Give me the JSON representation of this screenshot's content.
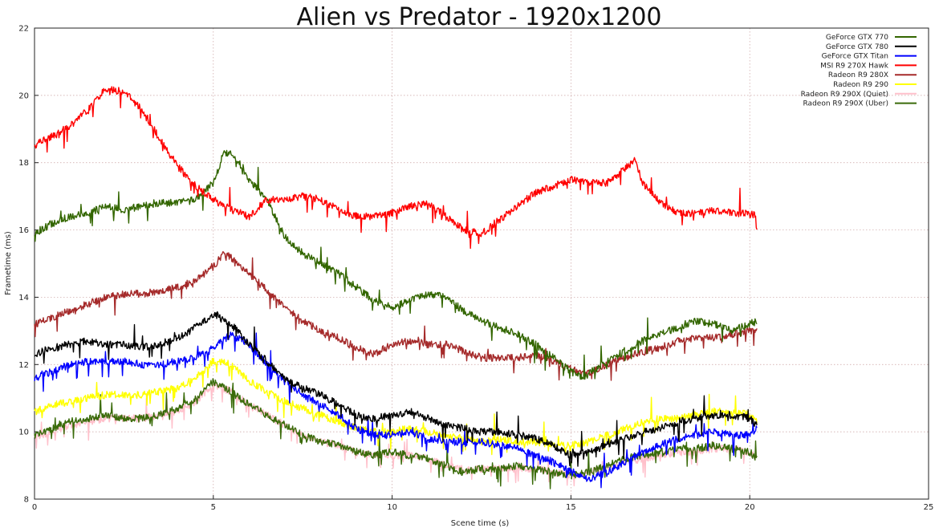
{
  "chart_data": {
    "type": "line",
    "title": "Alien vs Predator - 1920x1200",
    "xlabel": "Scene time (s)",
    "ylabel": "Frametime (ms)",
    "xlim": [
      0,
      25
    ],
    "ylim": [
      8,
      22
    ],
    "xticks": [
      0,
      5,
      10,
      15,
      20,
      25
    ],
    "yticks": [
      8,
      10,
      12,
      14,
      16,
      18,
      20,
      22
    ],
    "grid": true,
    "legend_position": "top-right",
    "series": [
      {
        "name": "GeForce GTX 770",
        "color": "#336600",
        "x": [
          0,
          0.5,
          1,
          1.5,
          2,
          2.5,
          3,
          3.5,
          4,
          4.5,
          5,
          5.3,
          5.6,
          6,
          6.5,
          7,
          7.5,
          8,
          8.5,
          9,
          9.5,
          10,
          10.5,
          11,
          11.5,
          12,
          12.5,
          13,
          13.5,
          14,
          14.5,
          15,
          15.3,
          15.6,
          16,
          16.5,
          17,
          17.5,
          18,
          18.5,
          19,
          19.5,
          20,
          20.2
        ],
        "y": [
          15.9,
          16.2,
          16.4,
          16.5,
          16.7,
          16.6,
          16.7,
          16.8,
          16.8,
          16.9,
          17.4,
          18.3,
          18.2,
          17.5,
          16.9,
          15.8,
          15.3,
          15.0,
          14.7,
          14.3,
          13.9,
          13.7,
          13.9,
          14.1,
          14.0,
          13.6,
          13.3,
          13.1,
          12.9,
          12.6,
          12.2,
          11.8,
          11.6,
          11.8,
          12.1,
          12.4,
          12.7,
          12.9,
          13.1,
          13.3,
          13.2,
          13.0,
          13.2,
          13.3
        ]
      },
      {
        "name": "GeForce GTX 780",
        "color": "#000000",
        "x": [
          0,
          0.5,
          1,
          1.5,
          2,
          2.5,
          3,
          3.5,
          4,
          4.5,
          5,
          5.5,
          6,
          6.5,
          7,
          7.5,
          8,
          8.5,
          9,
          9.5,
          10,
          10.5,
          11,
          11.5,
          12,
          12.5,
          13,
          13.5,
          14,
          14.5,
          15,
          15.5,
          16,
          16.5,
          17,
          17.5,
          18,
          18.5,
          19,
          19.5,
          20,
          20.2
        ],
        "y": [
          12.3,
          12.5,
          12.6,
          12.7,
          12.6,
          12.6,
          12.5,
          12.6,
          12.8,
          13.1,
          13.5,
          13.2,
          12.6,
          12.1,
          11.6,
          11.3,
          11.1,
          10.8,
          10.5,
          10.4,
          10.5,
          10.6,
          10.4,
          10.2,
          10.1,
          10.0,
          10.0,
          9.9,
          9.8,
          9.6,
          9.3,
          9.4,
          9.6,
          9.8,
          10.0,
          10.1,
          10.3,
          10.4,
          10.5,
          10.5,
          10.4,
          10.2
        ]
      },
      {
        "name": "GeForce GTX Titan",
        "color": "#0000ff",
        "x": [
          0,
          0.5,
          1,
          1.5,
          2,
          2.5,
          3,
          3.5,
          4,
          4.5,
          5,
          5.5,
          6,
          6.5,
          7,
          7.5,
          8,
          8.5,
          9,
          9.5,
          10,
          10.5,
          11,
          11.5,
          12,
          12.5,
          13,
          13.5,
          14,
          14.5,
          15,
          15.5,
          16,
          16.5,
          17,
          17.5,
          18,
          18.5,
          19,
          19.5,
          20,
          20.2
        ],
        "y": [
          11.6,
          11.8,
          12.0,
          12.1,
          12.1,
          12.1,
          12.0,
          12.0,
          12.1,
          12.2,
          12.5,
          12.9,
          12.6,
          12.0,
          11.5,
          11.1,
          10.8,
          10.5,
          10.1,
          9.9,
          9.9,
          10.0,
          9.8,
          9.7,
          9.7,
          9.7,
          9.6,
          9.5,
          9.3,
          9.1,
          8.8,
          8.6,
          8.8,
          9.1,
          9.4,
          9.6,
          9.8,
          9.9,
          10.0,
          9.9,
          9.9,
          10.1
        ]
      },
      {
        "name": "MSI R9 270X Hawk",
        "color": "#ff0000",
        "x": [
          0,
          0.5,
          1,
          1.5,
          2,
          2.5,
          3,
          3.5,
          4,
          4.5,
          5,
          5.5,
          6,
          6.5,
          7,
          7.5,
          8,
          8.5,
          9,
          9.5,
          10,
          10.5,
          11,
          11.5,
          12,
          12.5,
          13,
          13.5,
          14,
          14.5,
          15,
          15.5,
          16,
          16.5,
          16.8,
          17,
          17.5,
          18,
          18.5,
          19,
          19.5,
          20,
          20.2
        ],
        "y": [
          18.5,
          18.8,
          19.1,
          19.6,
          20.2,
          20.1,
          19.6,
          18.7,
          17.9,
          17.3,
          16.9,
          16.6,
          16.4,
          16.9,
          16.9,
          17.0,
          16.9,
          16.6,
          16.4,
          16.4,
          16.5,
          16.7,
          16.8,
          16.4,
          16.0,
          15.9,
          16.3,
          16.7,
          17.1,
          17.3,
          17.5,
          17.4,
          17.4,
          17.8,
          18.1,
          17.4,
          16.8,
          16.5,
          16.5,
          16.6,
          16.5,
          16.5,
          16.4
        ]
      },
      {
        "name": "Radeon R9 280X",
        "color": "#a52a2a",
        "x": [
          0,
          0.5,
          1,
          1.5,
          2,
          2.5,
          3,
          3.5,
          4,
          4.5,
          5,
          5.3,
          5.6,
          6,
          6.5,
          7,
          7.5,
          8,
          8.5,
          9,
          9.5,
          10,
          10.5,
          11,
          11.5,
          12,
          12.5,
          13,
          13.5,
          14,
          14.5,
          15,
          15.3,
          15.6,
          16,
          16.5,
          17,
          17.5,
          18,
          18.5,
          19,
          19.5,
          20,
          20.2
        ],
        "y": [
          13.2,
          13.4,
          13.6,
          13.8,
          14.0,
          14.1,
          14.1,
          14.2,
          14.3,
          14.5,
          14.9,
          15.3,
          15.1,
          14.7,
          14.2,
          13.7,
          13.3,
          13.0,
          12.8,
          12.5,
          12.3,
          12.6,
          12.7,
          12.6,
          12.6,
          12.4,
          12.2,
          12.2,
          12.2,
          12.3,
          12.1,
          11.9,
          11.7,
          11.8,
          12.0,
          12.2,
          12.4,
          12.5,
          12.7,
          12.8,
          12.8,
          12.9,
          13.0,
          13.0
        ]
      },
      {
        "name": "Radeon R9 290",
        "color": "#ffff00",
        "x": [
          0,
          0.5,
          1,
          1.5,
          2,
          2.5,
          3,
          3.5,
          4,
          4.5,
          5,
          5.5,
          6,
          6.5,
          7,
          7.5,
          8,
          8.5,
          9,
          9.5,
          10,
          10.5,
          11,
          11.5,
          12,
          12.5,
          13,
          13.5,
          14,
          14.5,
          15,
          15.5,
          16,
          16.5,
          17,
          17.5,
          18,
          18.5,
          19,
          19.5,
          20,
          20.2
        ],
        "y": [
          10.6,
          10.8,
          10.9,
          11.0,
          11.1,
          11.1,
          11.1,
          11.2,
          11.3,
          11.6,
          12.1,
          12.0,
          11.5,
          11.2,
          10.9,
          10.7,
          10.5,
          10.3,
          10.1,
          10.0,
          10.0,
          10.1,
          10.0,
          9.9,
          9.8,
          9.7,
          9.8,
          9.7,
          9.7,
          9.6,
          9.6,
          9.7,
          9.9,
          10.1,
          10.3,
          10.4,
          10.4,
          10.5,
          10.6,
          10.6,
          10.5,
          10.3
        ]
      },
      {
        "name": "Radeon R9 290X (Quiet)",
        "color": "#ffc0cb",
        "x": [
          0,
          0.5,
          1,
          1.5,
          2,
          2.5,
          3,
          3.5,
          4,
          4.5,
          5,
          5.5,
          6,
          6.5,
          7,
          7.5,
          8,
          8.5,
          9,
          9.5,
          10,
          10.5,
          11,
          11.5,
          12,
          12.5,
          13,
          13.5,
          14,
          14.5,
          15,
          15.5,
          16,
          16.5,
          17,
          17.5,
          18,
          18.5,
          19,
          19.5,
          20,
          20.2
        ],
        "y": [
          9.8,
          10.0,
          10.2,
          10.3,
          10.4,
          10.4,
          10.4,
          10.5,
          10.6,
          10.9,
          11.4,
          11.2,
          10.8,
          10.5,
          10.2,
          9.9,
          9.7,
          9.6,
          9.4,
          9.3,
          9.3,
          9.3,
          9.2,
          9.0,
          8.9,
          8.9,
          8.9,
          8.9,
          8.9,
          8.8,
          8.7,
          8.8,
          8.9,
          9.1,
          9.2,
          9.3,
          9.4,
          9.4,
          9.5,
          9.5,
          9.4,
          9.2
        ]
      },
      {
        "name": "Radeon R9 290X (Uber)",
        "color": "#3a6b0a",
        "x": [
          0,
          0.5,
          1,
          1.5,
          2,
          2.5,
          3,
          3.5,
          4,
          4.5,
          5,
          5.5,
          6,
          6.5,
          7,
          7.5,
          8,
          8.5,
          9,
          9.5,
          10,
          10.5,
          11,
          11.5,
          12,
          12.5,
          13,
          13.5,
          14,
          14.5,
          15,
          15.5,
          16,
          16.5,
          17,
          17.5,
          18,
          18.5,
          19,
          19.5,
          20,
          20.2
        ],
        "y": [
          9.9,
          10.1,
          10.3,
          10.4,
          10.5,
          10.4,
          10.4,
          10.5,
          10.7,
          11.0,
          11.5,
          11.2,
          10.8,
          10.5,
          10.2,
          9.9,
          9.7,
          9.6,
          9.4,
          9.3,
          9.4,
          9.3,
          9.2,
          9.0,
          8.8,
          8.9,
          8.9,
          9.0,
          8.9,
          8.8,
          8.7,
          8.8,
          9.0,
          9.2,
          9.3,
          9.4,
          9.5,
          9.5,
          9.6,
          9.5,
          9.4,
          9.2
        ]
      }
    ]
  }
}
